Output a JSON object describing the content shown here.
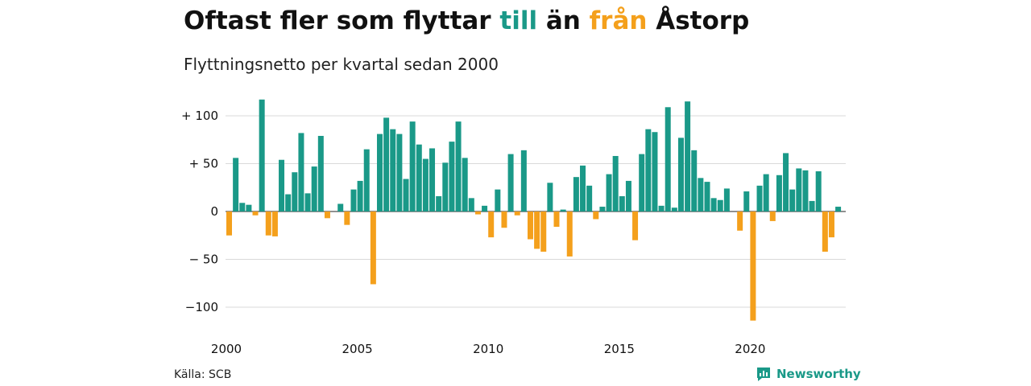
{
  "header": {
    "title_parts": [
      "Oftast fler som flyttar ",
      "till",
      " än ",
      "från",
      " Åstorp"
    ],
    "subtitle": "Flyttningsnetto per kvartal sedan 2000"
  },
  "footer": {
    "source": "Källa: SCB",
    "brand": "Newsworthy"
  },
  "colors": {
    "positive": "#1a9988",
    "negative": "#f4a01c",
    "grid": "#d9d9d9",
    "brand": "#1a9988"
  },
  "icons": {
    "brand": "newsworthy-logo-icon"
  },
  "chart_data": {
    "type": "bar",
    "title": "Oftast fler som flyttar till än från Åstorp",
    "subtitle": "Flyttningsnetto per kvartal sedan 2000",
    "xlabel": "",
    "ylabel": "",
    "ylim": [
      -120,
      120
    ],
    "yticks": [
      100,
      50,
      0,
      -50,
      -100
    ],
    "ytick_labels": [
      "+ 100",
      "+  50",
      "0",
      "− 50",
      "−100"
    ],
    "xticks": [
      2000,
      2005,
      2010,
      2015,
      2020
    ],
    "xtick_labels": [
      "2000",
      "2005",
      "2010",
      "2015",
      "2020"
    ],
    "grid": true,
    "start_year": 2000,
    "values": [
      -25,
      56,
      9,
      7,
      -4,
      117,
      -25,
      -26,
      54,
      18,
      41,
      82,
      19,
      47,
      79,
      -7,
      0,
      8,
      -14,
      23,
      32,
      65,
      -76,
      81,
      98,
      86,
      81,
      34,
      94,
      70,
      55,
      66,
      16,
      51,
      73,
      94,
      56,
      14,
      -3,
      6,
      -27,
      23,
      -17,
      60,
      -4,
      64,
      -29,
      -39,
      -42,
      30,
      -16,
      2,
      -47,
      36,
      48,
      27,
      -8,
      5,
      39,
      58,
      16,
      32,
      -30,
      60,
      86,
      83,
      6,
      109,
      4,
      77,
      115,
      64,
      35,
      31,
      14,
      12,
      24,
      0,
      -20,
      21,
      -114,
      27,
      39,
      -10,
      38,
      61,
      23,
      45,
      43,
      11,
      42,
      -42,
      -27,
      5
    ]
  }
}
